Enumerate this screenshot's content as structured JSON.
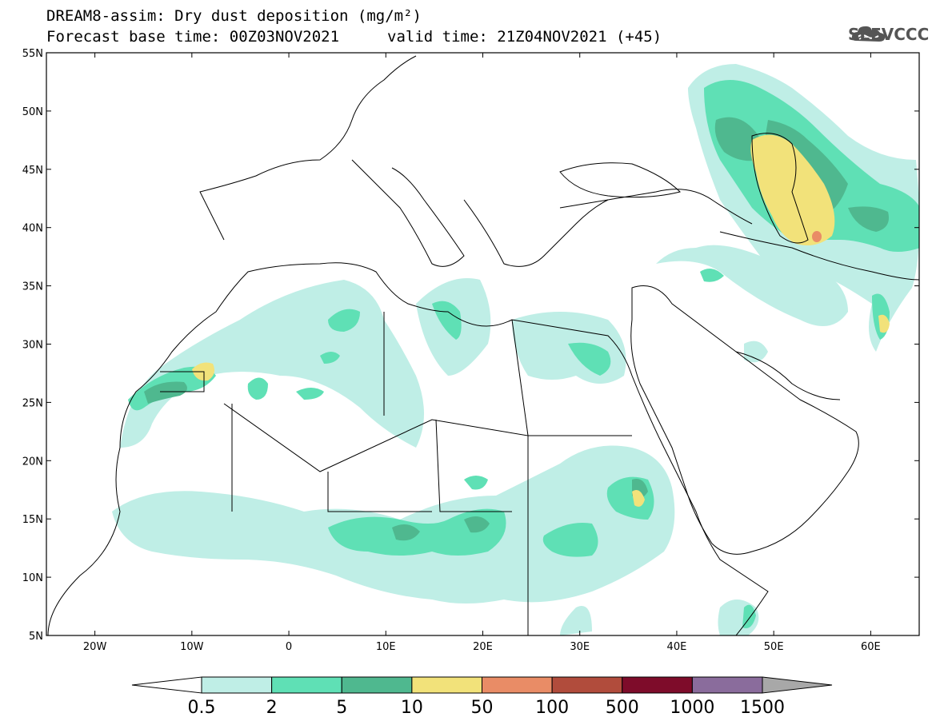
{
  "header": {
    "title": "DREAM8-assim: Dry dust deposition (mg/m²)",
    "base_time": "Forecast base time: 00Z03NOV2021",
    "valid_time": "valid time: 21Z04NOV2021 (+45)"
  },
  "logo": {
    "text": "SEEVCCC",
    "icon": "cloud-logo-icon"
  },
  "map": {
    "lon_range": [
      -25,
      65
    ],
    "lat_range": [
      5,
      55
    ],
    "lat_ticks": [
      "55N",
      "50N",
      "45N",
      "40N",
      "35N",
      "30N",
      "25N",
      "20N",
      "15N",
      "10N",
      "5N"
    ],
    "lon_ticks": [
      "20W",
      "10W",
      "0",
      "10E",
      "20E",
      "30E",
      "40E",
      "50E",
      "60E"
    ]
  },
  "colorbar": {
    "labels": [
      "0.5",
      "2",
      "5",
      "10",
      "50",
      "100",
      "500",
      "1000",
      "1500"
    ],
    "colors": [
      "#bfeee6",
      "#5fe0b5",
      "#4fb88f",
      "#f2e27a",
      "#e98c66",
      "#b14c3c",
      "#7e0c2a",
      "#8a6c9c"
    ],
    "below_color": "#ffffff",
    "above_color": "#a8a8a8"
  },
  "colors": {
    "level1": "#bfeee6",
    "level2": "#5fe0b5",
    "level3": "#4fb88f",
    "level4": "#f2e27a",
    "level5": "#e98c66"
  }
}
